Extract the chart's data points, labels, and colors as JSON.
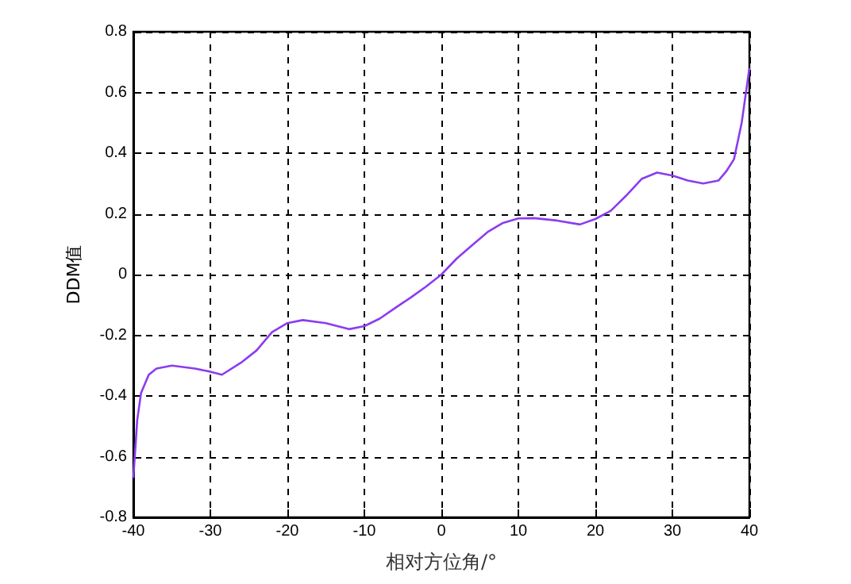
{
  "chart_data": {
    "type": "line",
    "xlabel": "相对方位角/°",
    "ylabel": "DDM值",
    "x": [
      -40,
      -39.5,
      -39,
      -38,
      -37,
      -35,
      -32,
      -30,
      -28.5,
      -26,
      -24,
      -22,
      -20,
      -18,
      -15,
      -12,
      -10,
      -8,
      -6,
      -4,
      -2,
      0,
      2,
      4,
      6,
      8,
      10,
      12,
      15,
      18,
      20,
      22,
      24,
      26,
      28,
      30,
      32,
      34,
      36,
      37,
      38,
      39,
      39.5,
      40
    ],
    "series": [
      {
        "color": "#8b3cf0",
        "values": [
          -0.67,
          -0.48,
          -0.39,
          -0.33,
          -0.31,
          -0.3,
          -0.31,
          -0.32,
          -0.33,
          -0.29,
          -0.25,
          -0.19,
          -0.16,
          -0.15,
          -0.16,
          -0.18,
          -0.17,
          -0.145,
          -0.11,
          -0.076,
          -0.04,
          0,
          0.053,
          0.097,
          0.14,
          0.17,
          0.185,
          0.186,
          0.178,
          0.165,
          0.183,
          0.21,
          0.26,
          0.315,
          0.336,
          0.326,
          0.31,
          0.3,
          0.31,
          0.34,
          0.38,
          0.5,
          0.59,
          0.68
        ]
      }
    ],
    "xlim": [
      -40,
      40
    ],
    "xticks": [
      -40,
      -30,
      -20,
      -10,
      0,
      10,
      20,
      30,
      40
    ],
    "ylim": [
      -0.8,
      0.8
    ],
    "yticks": [
      -0.8,
      -0.6,
      -0.4,
      -0.2,
      0,
      0.2,
      0.4,
      0.6,
      0.8
    ],
    "grid": true,
    "marker": "none",
    "line_style": "solid"
  }
}
